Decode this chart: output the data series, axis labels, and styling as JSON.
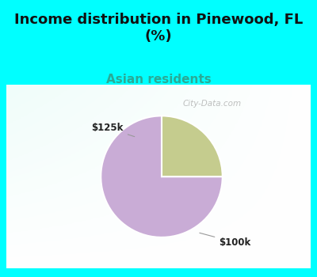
{
  "title": "Income distribution in Pinewood, FL\n(%)",
  "subtitle": "Asian residents",
  "title_color": "#111111",
  "subtitle_color": "#2aaa96",
  "bg_cyan": "#00ffff",
  "chart_bg_color": "#e8f5ee",
  "slices": [
    {
      "label": "$100k",
      "value": 75,
      "color": "#c9acd6"
    },
    {
      "label": "$125k",
      "value": 25,
      "color": "#c5cc8e"
    }
  ],
  "watermark": "City-Data.com",
  "startangle": 90,
  "title_fontsize": 13,
  "subtitle_fontsize": 11
}
